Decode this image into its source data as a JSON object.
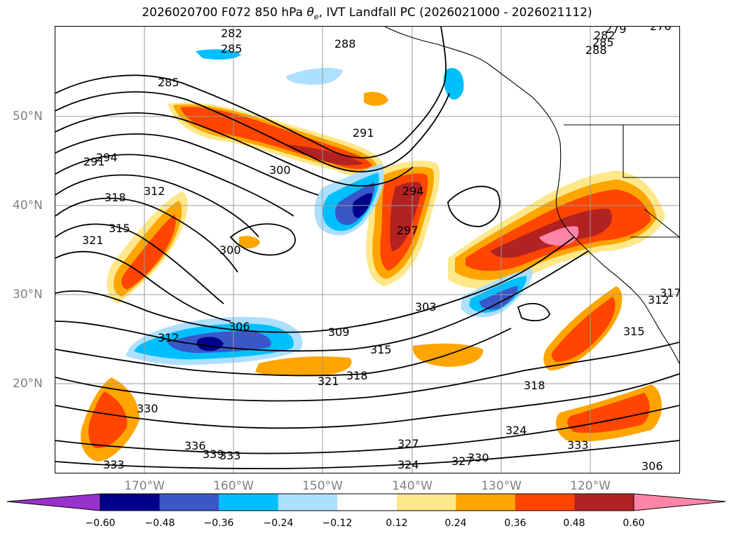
{
  "title": "2026020700 F072 850 hPa θe, IVT Landfall PC (2026021000 - 2026021112)",
  "map": {
    "latitude_labels": [
      "50°N",
      "40°N",
      "30°N",
      "20°N"
    ],
    "longitude_labels": [
      "170°W",
      "160°W",
      "150°W",
      "140°W",
      "130°W",
      "120°W"
    ],
    "contour_labels": [
      "282",
      "285",
      "288",
      "279",
      "276",
      "282",
      "285",
      "288",
      "285",
      "291",
      "294",
      "318",
      "315",
      "321",
      "312",
      "300",
      "300",
      "291",
      "294",
      "297",
      "303",
      "306",
      "309",
      "312",
      "315",
      "318",
      "321",
      "324",
      "327",
      "324",
      "327",
      "330",
      "330",
      "336",
      "339",
      "333",
      "333",
      "333",
      "306",
      "318",
      "317",
      "315",
      "312"
    ]
  },
  "colorbar": {
    "ticks": [
      "−0.60",
      "−0.48",
      "−0.36",
      "−0.24",
      "−0.12",
      "0.12",
      "0.24",
      "0.36",
      "0.48",
      "0.60"
    ],
    "colors": [
      "#9932CC",
      "#00008B",
      "#3A57C8",
      "#00BFFF",
      "#ADDFFF",
      "#FFFFFF",
      "#FFE88A",
      "#FFA500",
      "#FF4500",
      "#B22222",
      "#FF85A8"
    ]
  }
}
